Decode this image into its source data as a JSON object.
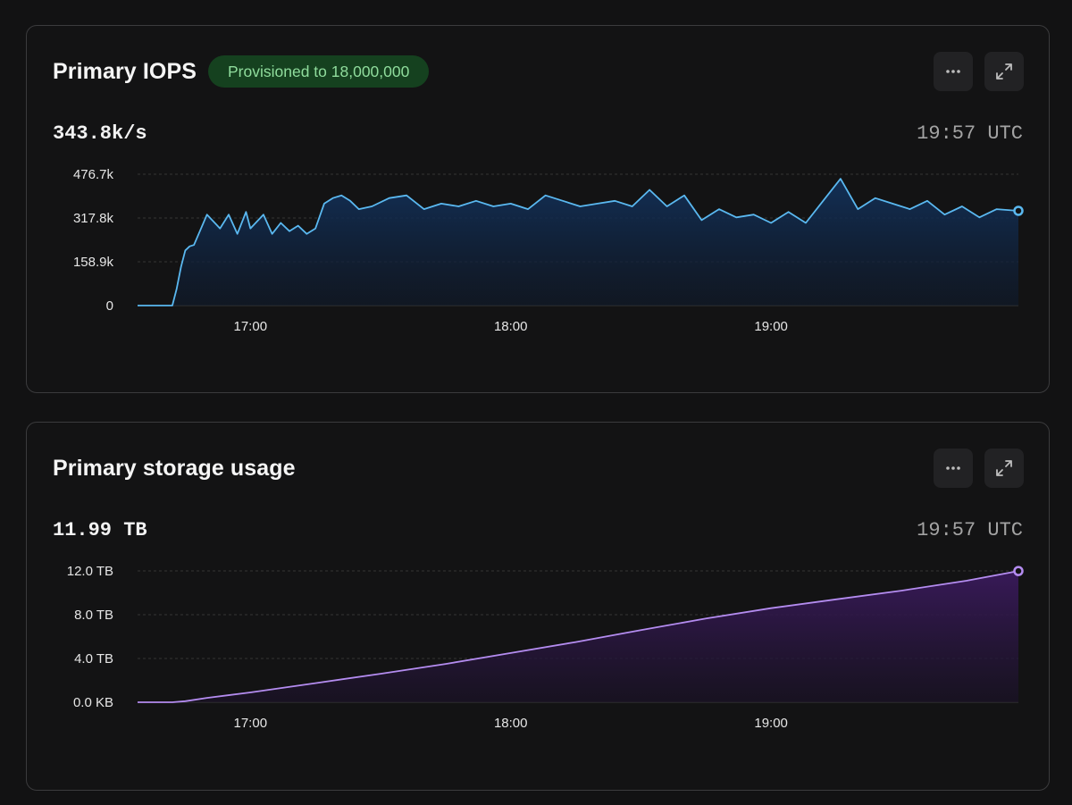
{
  "cards": [
    {
      "title": "Primary IOPS",
      "badge": "Provisioned to 18,000,000",
      "value": "343.8k/s",
      "time": "19:57 UTC",
      "more_icon": "ellipsis-icon",
      "expand_icon": "expand-icon"
    },
    {
      "title": "Primary storage usage",
      "value": "11.99 TB",
      "time": "19:57 UTC",
      "more_icon": "ellipsis-icon",
      "expand_icon": "expand-icon"
    }
  ],
  "colors": {
    "iops_line": "#5ab8f0",
    "storage_line": "#b48cf0",
    "badge_bg": "#15411f",
    "badge_text": "#8fdc9c"
  },
  "chart_data": [
    {
      "type": "area",
      "x_start": "16:34",
      "x_end": "19:57",
      "xticks": [
        "17:00",
        "18:00",
        "19:00"
      ],
      "yticks": [
        "0",
        "158.9k",
        "317.8k",
        "476.7k"
      ],
      "ylim": [
        0,
        476700
      ],
      "grid": true,
      "x": [
        "16:34",
        "16:38",
        "16:42",
        "16:43",
        "16:44",
        "16:45",
        "16:46",
        "16:47",
        "16:50",
        "16:53",
        "16:55",
        "16:57",
        "16:59",
        "17:00",
        "17:03",
        "17:05",
        "17:07",
        "17:09",
        "17:11",
        "17:13",
        "17:15",
        "17:17",
        "17:19",
        "17:21",
        "17:23",
        "17:25",
        "17:28",
        "17:32",
        "17:36",
        "17:40",
        "17:44",
        "17:48",
        "17:52",
        "17:56",
        "18:00",
        "18:04",
        "18:08",
        "18:12",
        "18:16",
        "18:20",
        "18:24",
        "18:28",
        "18:32",
        "18:36",
        "18:40",
        "18:44",
        "18:48",
        "18:52",
        "18:56",
        "19:00",
        "19:04",
        "19:08",
        "19:12",
        "19:16",
        "19:20",
        "19:24",
        "19:28",
        "19:32",
        "19:36",
        "19:40",
        "19:44",
        "19:48",
        "19:52",
        "19:57"
      ],
      "series": [
        {
          "values": [
            0,
            0,
            0,
            60000,
            140000,
            200000,
            215000,
            220000,
            330000,
            280000,
            330000,
            260000,
            340000,
            280000,
            330000,
            260000,
            300000,
            270000,
            290000,
            260000,
            280000,
            370000,
            390000,
            400000,
            380000,
            350000,
            360000,
            390000,
            400000,
            350000,
            370000,
            360000,
            380000,
            360000,
            370000,
            350000,
            400000,
            380000,
            360000,
            370000,
            380000,
            360000,
            420000,
            360000,
            400000,
            310000,
            350000,
            320000,
            330000,
            300000,
            340000,
            300000,
            380000,
            460000,
            350000,
            390000,
            370000,
            350000,
            380000,
            330000,
            360000,
            320000,
            350000,
            343800
          ]
        }
      ]
    },
    {
      "type": "area",
      "x_start": "16:34",
      "x_end": "19:57",
      "xticks": [
        "17:00",
        "18:00",
        "19:00"
      ],
      "yticks": [
        "0.0 KB",
        "4.0 TB",
        "8.0 TB",
        "12.0 TB"
      ],
      "ylim": [
        0,
        12
      ],
      "grid": true,
      "x": [
        "16:34",
        "16:42",
        "16:45",
        "16:50",
        "17:00",
        "17:15",
        "17:30",
        "17:45",
        "18:00",
        "18:15",
        "18:30",
        "18:45",
        "19:00",
        "19:15",
        "19:30",
        "19:45",
        "19:57"
      ],
      "series": [
        {
          "values": [
            0,
            0,
            0.1,
            0.4,
            0.9,
            1.75,
            2.6,
            3.5,
            4.5,
            5.5,
            6.6,
            7.65,
            8.6,
            9.4,
            10.2,
            11.1,
            11.99
          ]
        }
      ]
    }
  ]
}
